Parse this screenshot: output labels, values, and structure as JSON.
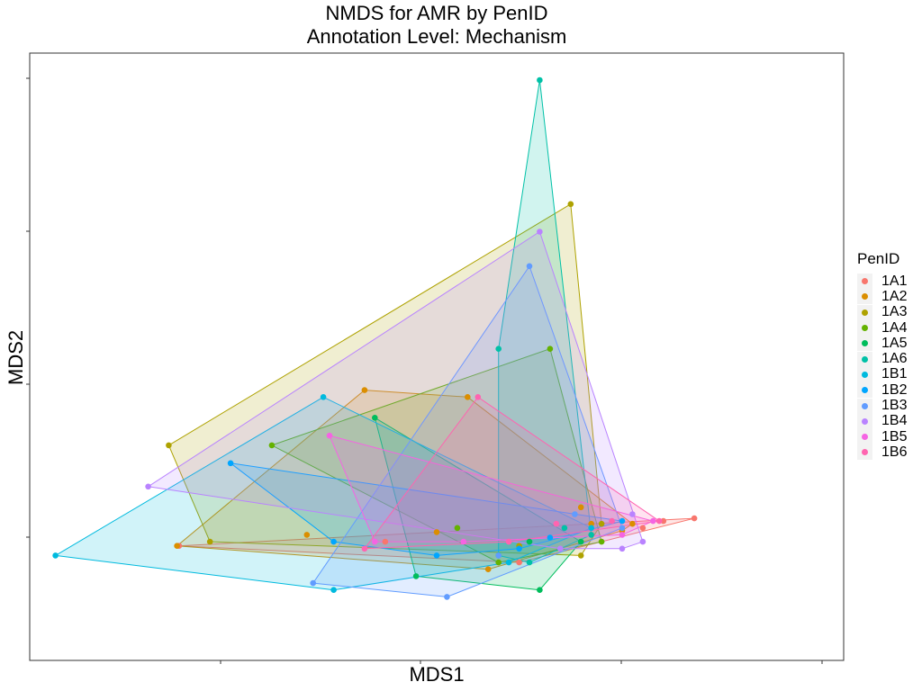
{
  "chart_data": {
    "type": "scatter",
    "title": "NMDS for AMR by PenID",
    "subtitle": "Annotation Level: Mechanism",
    "xlabel": "MDS1",
    "ylabel": "MDS2",
    "xlim": [
      -1.6,
      2.0
    ],
    "ylim": [
      -1.65,
      2.3
    ],
    "legend": {
      "title": "PenID",
      "placement": "right"
    },
    "series": [
      {
        "name": "1A1",
        "color": "#F8766D",
        "points": [
          [
            -1.05,
            -1.08
          ],
          [
            -0.05,
            -1.05
          ],
          [
            0.6,
            -1.2
          ],
          [
            1.2,
            -0.95
          ],
          [
            1.45,
            -0.88
          ],
          [
            1.3,
            -0.9
          ]
        ]
      },
      {
        "name": "1A2",
        "color": "#DB8E00",
        "points": [
          [
            -1.06,
            -1.08
          ],
          [
            -0.15,
            0.05
          ],
          [
            0.35,
            -0.0
          ],
          [
            0.9,
            -0.8
          ],
          [
            1.15,
            -0.92
          ],
          [
            0.45,
            -1.25
          ],
          [
            -0.43,
            -1.0
          ],
          [
            0.95,
            -0.92
          ],
          [
            1.1,
            -0.97
          ],
          [
            0.2,
            -0.98
          ]
        ]
      },
      {
        "name": "1A3",
        "color": "#AEA200",
        "points": [
          [
            -1.1,
            -0.35
          ],
          [
            0.85,
            1.4
          ],
          [
            1.0,
            -0.92
          ],
          [
            0.9,
            -1.15
          ],
          [
            -0.9,
            -1.05
          ],
          [
            0.6,
            -1.08
          ]
        ]
      },
      {
        "name": "1A4",
        "color": "#64B200",
        "points": [
          [
            -0.6,
            -0.35
          ],
          [
            0.75,
            0.35
          ],
          [
            1.0,
            -1.05
          ],
          [
            0.5,
            -1.2
          ],
          [
            0.3,
            -0.95
          ]
        ]
      },
      {
        "name": "1A5",
        "color": "#00BD5C",
        "points": [
          [
            -0.1,
            -0.15
          ],
          [
            0.1,
            -1.3
          ],
          [
            0.7,
            -1.4
          ],
          [
            0.9,
            -1.05
          ],
          [
            0.65,
            -1.05
          ]
        ]
      },
      {
        "name": "1A6",
        "color": "#00C1A7",
        "points": [
          [
            0.7,
            2.3
          ],
          [
            0.5,
            0.35
          ],
          [
            0.5,
            -1.15
          ],
          [
            0.95,
            -1.0
          ],
          [
            0.82,
            -0.95
          ],
          [
            0.65,
            -1.2
          ]
        ]
      },
      {
        "name": "1B1",
        "color": "#00BADE",
        "points": [
          [
            -1.65,
            -1.15
          ],
          [
            -0.35,
            0.0
          ],
          [
            0.95,
            -0.95
          ],
          [
            0.55,
            -1.2
          ],
          [
            -0.3,
            -1.4
          ]
        ]
      },
      {
        "name": "1B2",
        "color": "#00A6FF",
        "points": [
          [
            -0.8,
            -0.48
          ],
          [
            0.75,
            -1.02
          ],
          [
            1.1,
            -0.9
          ],
          [
            -0.3,
            -1.05
          ],
          [
            0.6,
            -1.1
          ],
          [
            0.2,
            -1.15
          ]
        ]
      },
      {
        "name": "1B3",
        "color": "#619CFF",
        "points": [
          [
            -0.4,
            -1.35
          ],
          [
            0.65,
            0.95
          ],
          [
            0.87,
            -0.85
          ],
          [
            1.1,
            -0.95
          ],
          [
            0.25,
            -1.45
          ],
          [
            0.5,
            -1.15
          ]
        ]
      },
      {
        "name": "1B4",
        "color": "#B983FF",
        "points": [
          [
            -1.2,
            -0.65
          ],
          [
            0.7,
            1.2
          ],
          [
            1.15,
            -0.85
          ],
          [
            1.1,
            -1.1
          ],
          [
            0.8,
            -1.1
          ],
          [
            1.2,
            -1.05
          ]
        ]
      },
      {
        "name": "1B5",
        "color": "#F564E3",
        "points": [
          [
            -0.32,
            -0.28
          ],
          [
            -0.1,
            -1.05
          ],
          [
            0.33,
            -1.05
          ],
          [
            1.25,
            -0.9
          ],
          [
            1.1,
            -1.0
          ]
        ]
      },
      {
        "name": "1B6",
        "color": "#FF64B0",
        "points": [
          [
            0.4,
            0.0
          ],
          [
            0.78,
            -0.92
          ],
          [
            1.28,
            -0.9
          ],
          [
            1.05,
            -0.9
          ],
          [
            0.55,
            -1.05
          ],
          [
            -0.15,
            -1.1
          ]
        ]
      }
    ]
  }
}
